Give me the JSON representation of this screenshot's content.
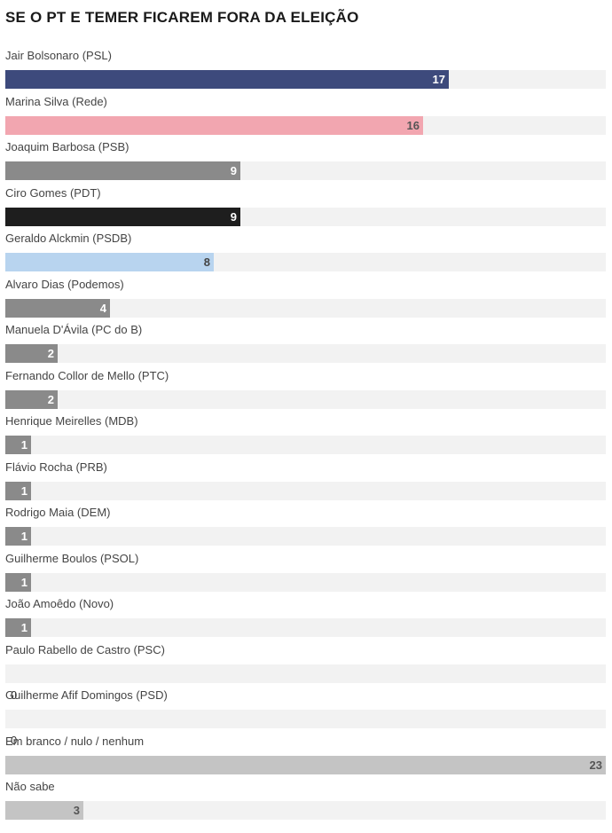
{
  "chart_data": {
    "type": "bar",
    "orientation": "horizontal",
    "title": "SE O PT E TEMER FICAREM FORA DA ELEIÇÃO",
    "xlim": [
      0,
      23
    ],
    "grid": false,
    "legend": "none",
    "categories": [
      "Jair Bolsonaro (PSL)",
      "Marina Silva (Rede)",
      "Joaquim Barbosa (PSB)",
      "Ciro Gomes (PDT)",
      "Geraldo Alckmin (PSDB)",
      "Alvaro Dias (Podemos)",
      "Manuela D'Ávila (PC do B)",
      "Fernando Collor de Mello (PTC)",
      "Henrique Meirelles (MDB)",
      "Flávio Rocha (PRB)",
      "Rodrigo Maia (DEM)",
      "Guilherme Boulos (PSOL)",
      "João Amoêdo (Novo)",
      "Paulo Rabello de Castro (PSC)",
      "Guilherme Afif Domingos (PSD)",
      "Em branco / nulo / nenhum",
      "Não sabe"
    ],
    "values": [
      17,
      16,
      9,
      9,
      8,
      4,
      2,
      2,
      1,
      1,
      1,
      1,
      1,
      0,
      0,
      23,
      3
    ],
    "colors": [
      "#3d4a7c",
      "#f2a6b0",
      "#8a8a8a",
      "#1e1e1e",
      "#b8d4ef",
      "#8a8a8a",
      "#8a8a8a",
      "#8a8a8a",
      "#8a8a8a",
      "#8a8a8a",
      "#8a8a8a",
      "#8a8a8a",
      "#8a8a8a",
      "#8a8a8a",
      "#8a8a8a",
      "#c4c4c4",
      "#c4c4c4"
    ],
    "label_colors": [
      "#ffffff",
      "#555555",
      "#ffffff",
      "#ffffff",
      "#444444",
      "#ffffff",
      "#ffffff",
      "#ffffff",
      "#ffffff",
      "#ffffff",
      "#ffffff",
      "#ffffff",
      "#ffffff",
      "#333333",
      "#333333",
      "#555555",
      "#555555"
    ],
    "track_color": "#f2f2f2"
  }
}
